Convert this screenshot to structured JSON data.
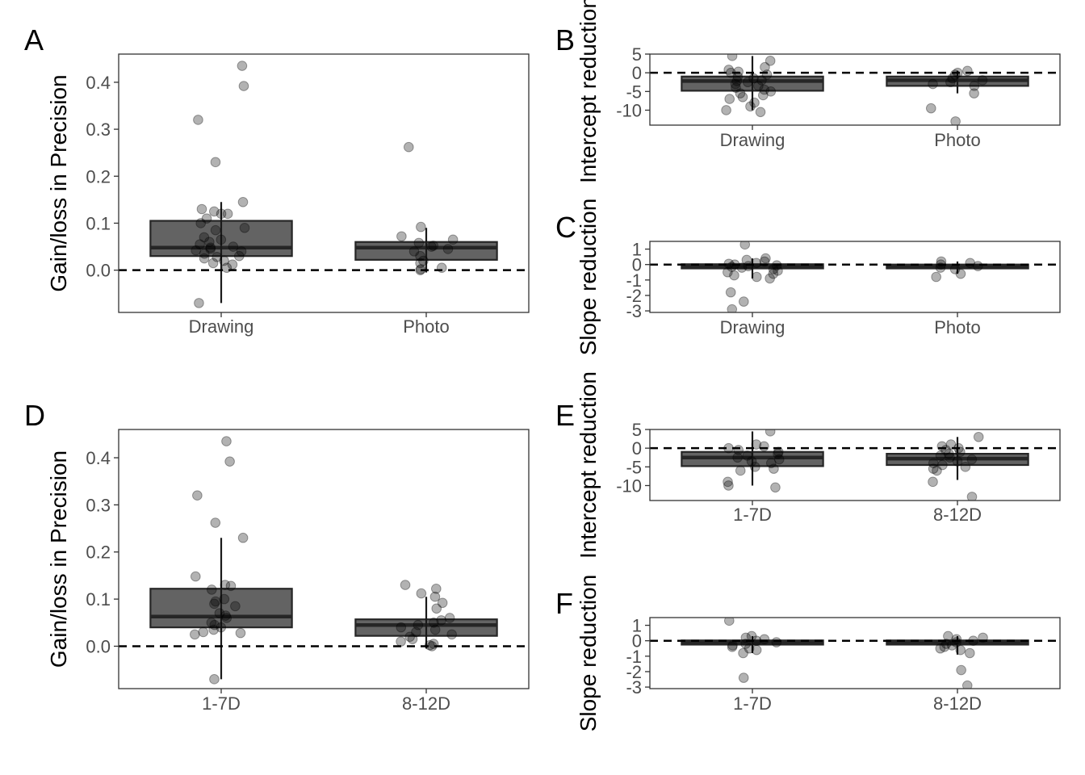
{
  "chart_data": [
    {
      "panel": "A",
      "type": "box",
      "categories": [
        "Drawing",
        "Photo"
      ],
      "ylabel": "Gain/loss in Precision",
      "xlabel": "",
      "ylim": [
        -0.09,
        0.46
      ],
      "yticks": [
        0.0,
        0.1,
        0.2,
        0.3,
        0.4
      ],
      "ytick_labels": [
        "0.0",
        "0.1",
        "0.2",
        "0.3",
        "0.4"
      ],
      "reference_line": 0,
      "grid": false,
      "boxes": [
        {
          "category": "Drawing",
          "q1": 0.03,
          "median": 0.048,
          "q3": 0.105,
          "whisker_low": -0.07,
          "whisker_high": 0.145
        },
        {
          "category": "Photo",
          "q1": 0.022,
          "median": 0.048,
          "q3": 0.06,
          "whisker_low": -0.005,
          "whisker_high": 0.09
        }
      ],
      "points": [
        {
          "category": "Drawing",
          "values": [
            0.435,
            0.392,
            0.32,
            0.23,
            0.145,
            0.13,
            0.125,
            0.12,
            0.12,
            0.11,
            0.1,
            0.09,
            0.085,
            0.07,
            0.065,
            0.06,
            0.055,
            0.05,
            0.048,
            0.045,
            0.042,
            0.04,
            0.035,
            0.03,
            0.028,
            0.025,
            0.02,
            0.015,
            0.012,
            0.005,
            -0.07
          ]
        },
        {
          "category": "Photo",
          "values": [
            0.262,
            0.092,
            0.072,
            0.065,
            0.058,
            0.052,
            0.05,
            0.045,
            0.04,
            0.03,
            0.02,
            0.015,
            0.005,
            0.002,
            0.0
          ]
        }
      ]
    },
    {
      "panel": "B",
      "type": "box",
      "categories": [
        "Drawing",
        "Photo"
      ],
      "ylabel": "Intercept reduction",
      "xlabel": "",
      "ylim": [
        -14,
        5
      ],
      "yticks": [
        5,
        0,
        -5,
        -10
      ],
      "ytick_labels": [
        "5",
        "0",
        "-5",
        "-10"
      ],
      "reference_line": 0,
      "grid": false,
      "boxes": [
        {
          "category": "Drawing",
          "q1": -4.8,
          "median": -2.2,
          "q3": -1.0,
          "whisker_low": -10,
          "whisker_high": 4.5
        },
        {
          "category": "Photo",
          "q1": -3.5,
          "median": -2.0,
          "q3": -1.0,
          "whisker_low": -5.5,
          "whisker_high": 0.5
        }
      ],
      "points": [
        {
          "category": "Drawing",
          "values": [
            4.5,
            3.2,
            1.5,
            0.8,
            0.3,
            0.0,
            -0.5,
            -1.0,
            -1.5,
            -2.0,
            -2.2,
            -2.5,
            -3.0,
            -3.5,
            -4.0,
            -4.5,
            -5.0,
            -5.5,
            -6.0,
            -6.5,
            -7.0,
            -8.0,
            -9.0,
            -10.0,
            -10.5
          ]
        },
        {
          "category": "Photo",
          "values": [
            0.5,
            0.0,
            -0.5,
            -1.5,
            -2.0,
            -2.5,
            -3.0,
            -3.5,
            -5.5,
            -9.5,
            -13.0
          ]
        }
      ]
    },
    {
      "panel": "C",
      "type": "box",
      "categories": [
        "Drawing",
        "Photo"
      ],
      "ylabel": "Slope reduction",
      "xlabel": "",
      "ylim": [
        -3.1,
        1.5
      ],
      "yticks": [
        1,
        0,
        -1,
        -2,
        -3
      ],
      "ytick_labels": [
        "1",
        "0",
        "-1",
        "-2",
        "-3"
      ],
      "reference_line": 0,
      "grid": false,
      "boxes": [
        {
          "category": "Drawing",
          "q1": -0.25,
          "median": -0.08,
          "q3": 0.02,
          "whisker_low": -0.9,
          "whisker_high": 0.4
        },
        {
          "category": "Photo",
          "q1": -0.25,
          "median": -0.08,
          "q3": 0.0,
          "whisker_low": -0.6,
          "whisker_high": 0.2
        }
      ],
      "points": [
        {
          "category": "Drawing",
          "values": [
            1.3,
            0.4,
            0.3,
            0.2,
            0.1,
            0.05,
            0.0,
            -0.05,
            -0.1,
            -0.15,
            -0.2,
            -0.3,
            -0.4,
            -0.5,
            -0.6,
            -0.7,
            -0.8,
            -0.9,
            -1.8,
            -2.4,
            -2.9
          ]
        },
        {
          "category": "Photo",
          "values": [
            0.2,
            0.1,
            0.0,
            -0.1,
            -0.2,
            -0.3,
            -0.6,
            -0.8
          ]
        }
      ]
    },
    {
      "panel": "D",
      "type": "box",
      "categories": [
        "1-7D",
        "8-12D"
      ],
      "ylabel": "Gain/loss in Precision",
      "xlabel": "",
      "ylim": [
        -0.09,
        0.46
      ],
      "yticks": [
        0.0,
        0.1,
        0.2,
        0.3,
        0.4
      ],
      "ytick_labels": [
        "0.0",
        "0.1",
        "0.2",
        "0.3",
        "0.4"
      ],
      "reference_line": 0,
      "grid": false,
      "boxes": [
        {
          "category": "1-7D",
          "q1": 0.04,
          "median": 0.063,
          "q3": 0.122,
          "whisker_low": -0.07,
          "whisker_high": 0.23
        },
        {
          "category": "8-12D",
          "q1": 0.022,
          "median": 0.045,
          "q3": 0.057,
          "whisker_low": -0.005,
          "whisker_high": 0.105
        }
      ],
      "points": [
        {
          "category": "1-7D",
          "values": [
            0.435,
            0.392,
            0.32,
            0.262,
            0.23,
            0.148,
            0.13,
            0.128,
            0.12,
            0.1,
            0.095,
            0.09,
            0.085,
            0.07,
            0.065,
            0.06,
            0.05,
            0.045,
            0.04,
            0.035,
            0.03,
            0.028,
            0.025,
            -0.07
          ]
        },
        {
          "category": "8-12D",
          "values": [
            0.13,
            0.122,
            0.112,
            0.105,
            0.092,
            0.08,
            0.06,
            0.055,
            0.05,
            0.045,
            0.04,
            0.035,
            0.03,
            0.025,
            0.02,
            0.015,
            0.01,
            0.005,
            0.002,
            0.0
          ]
        }
      ]
    },
    {
      "panel": "E",
      "type": "box",
      "categories": [
        "1-7D",
        "8-12D"
      ],
      "ylabel": "Intercept reduction",
      "xlabel": "",
      "ylim": [
        -14,
        5
      ],
      "yticks": [
        5,
        0,
        -5,
        -10
      ],
      "ytick_labels": [
        "5",
        "0",
        "-5",
        "-10"
      ],
      "reference_line": 0,
      "grid": false,
      "boxes": [
        {
          "category": "1-7D",
          "q1": -4.8,
          "median": -2.5,
          "q3": -1.0,
          "whisker_low": -10,
          "whisker_high": 4.5
        },
        {
          "category": "8-12D",
          "q1": -4.5,
          "median": -2.8,
          "q3": -1.5,
          "whisker_low": -8.5,
          "whisker_high": 3.0
        }
      ],
      "points": [
        {
          "category": "1-7D",
          "values": [
            4.5,
            1.0,
            0.5,
            0.0,
            -0.5,
            -1.0,
            -1.5,
            -2.0,
            -2.5,
            -3.0,
            -3.5,
            -4.0,
            -5.0,
            -5.5,
            -6.0,
            -9.0,
            -10.0,
            -10.5
          ]
        },
        {
          "category": "8-12D",
          "values": [
            3.0,
            1.0,
            0.5,
            0.0,
            -0.5,
            -1.0,
            -1.5,
            -2.0,
            -2.5,
            -3.0,
            -3.5,
            -4.0,
            -4.5,
            -5.0,
            -5.5,
            -6.0,
            -9.0,
            -13.0
          ]
        }
      ]
    },
    {
      "panel": "F",
      "type": "box",
      "categories": [
        "1-7D",
        "8-12D"
      ],
      "ylabel": "Slope reduction",
      "xlabel": "",
      "ylim": [
        -3.1,
        1.5
      ],
      "yticks": [
        1,
        0,
        -1,
        -2,
        -3
      ],
      "ytick_labels": [
        "1",
        "0",
        "-1",
        "-2",
        "-3"
      ],
      "reference_line": 0,
      "grid": false,
      "boxes": [
        {
          "category": "1-7D",
          "q1": -0.25,
          "median": -0.08,
          "q3": 0.02,
          "whisker_low": -0.8,
          "whisker_high": 0.3
        },
        {
          "category": "8-12D",
          "q1": -0.25,
          "median": -0.08,
          "q3": 0.02,
          "whisker_low": -0.9,
          "whisker_high": 0.3
        }
      ],
      "points": [
        {
          "category": "1-7D",
          "values": [
            1.3,
            0.3,
            0.2,
            0.1,
            0.0,
            -0.1,
            -0.2,
            -0.3,
            -0.4,
            -0.5,
            -0.6,
            -0.8,
            -2.4
          ]
        },
        {
          "category": "8-12D",
          "values": [
            0.3,
            0.2,
            0.1,
            0.0,
            -0.1,
            -0.2,
            -0.3,
            -0.4,
            -0.5,
            -0.6,
            -0.8,
            -1.9,
            -2.9
          ]
        }
      ]
    }
  ]
}
